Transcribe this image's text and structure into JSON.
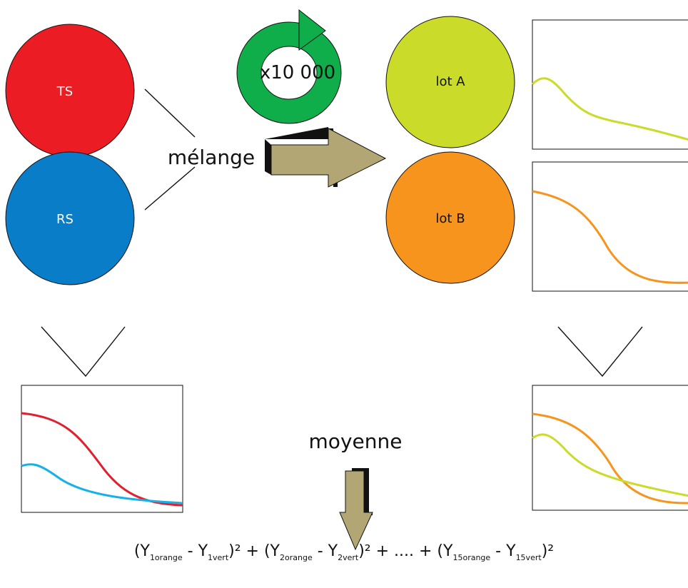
{
  "colors": {
    "ts": "#EC1C24",
    "rs": "#0A7DC8",
    "lot_a": "#CBDB2A",
    "lot_b": "#F7941D",
    "cycle": "#10AE4A",
    "arrow": "#B2A674",
    "curve_red": "#E0202E",
    "curve_blue": "#15B1E8"
  },
  "groups": {
    "ts": "TS",
    "rs": "RS",
    "lot_a": "lot A",
    "lot_b": "lot B"
  },
  "labels": {
    "mix": "mélange",
    "repeat": "x10 000",
    "average": "moyenne"
  },
  "formula": {
    "t1": "Y",
    "s1": "1orange",
    "m1": " - Y",
    "s2": "1vert",
    "t2": ")² + (Y",
    "s3": "2orange",
    "m2": " - Y",
    "s4": "2vert",
    "t3": ")² + .... + (Y",
    "s5": "15orange",
    "m3": " - Y",
    "s6": "15vert",
    "end": ")²",
    "open": "("
  },
  "icons": [
    "cycle-arrow-icon",
    "right-arrow-icon",
    "down-arrow-icon"
  ]
}
